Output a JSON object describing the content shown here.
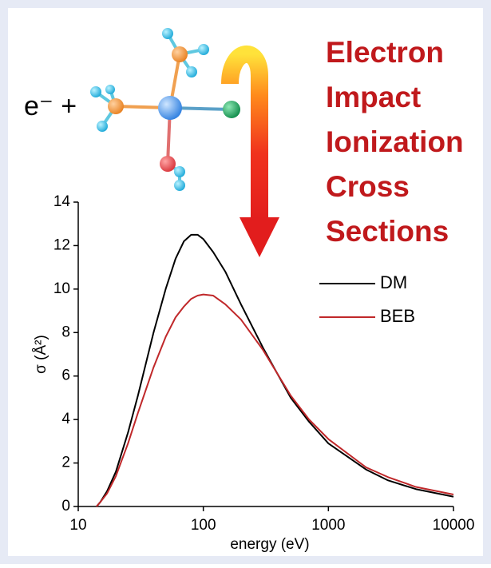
{
  "chart_data": {
    "type": "line",
    "title": [
      "Electron",
      "Impact",
      "Ionization",
      "Cross",
      "Sections"
    ],
    "annotation": "e⁻ +",
    "xlabel": "energy (eV)",
    "ylabel": "σ (Å²)",
    "xscale": "log",
    "x": [
      14,
      15,
      17,
      20,
      25,
      30,
      40,
      50,
      60,
      70,
      80,
      90,
      100,
      120,
      150,
      200,
      300,
      500,
      700,
      1000,
      2000,
      3000,
      5000,
      10000
    ],
    "series": [
      {
        "name": "DM",
        "color": "#000000",
        "values": [
          0,
          0.2,
          0.7,
          1.6,
          3.4,
          5.1,
          8.0,
          10.0,
          11.4,
          12.2,
          12.5,
          12.5,
          12.3,
          11.7,
          10.8,
          9.3,
          7.3,
          5.0,
          3.9,
          2.9,
          1.7,
          1.2,
          0.8,
          0.45
        ]
      },
      {
        "name": "BEB",
        "color": "#c0282a",
        "values": [
          0,
          0.2,
          0.6,
          1.4,
          2.9,
          4.3,
          6.4,
          7.8,
          8.7,
          9.2,
          9.55,
          9.7,
          9.75,
          9.7,
          9.3,
          8.6,
          7.2,
          5.1,
          4.0,
          3.1,
          1.8,
          1.35,
          0.9,
          0.55
        ]
      }
    ],
    "xlim": [
      10,
      10000
    ],
    "xticks": [
      10,
      100,
      1000,
      10000
    ],
    "ylim": [
      0,
      14
    ],
    "yticks": [
      0,
      2,
      4,
      6,
      8,
      10,
      12,
      14
    ],
    "legend": "right"
  }
}
